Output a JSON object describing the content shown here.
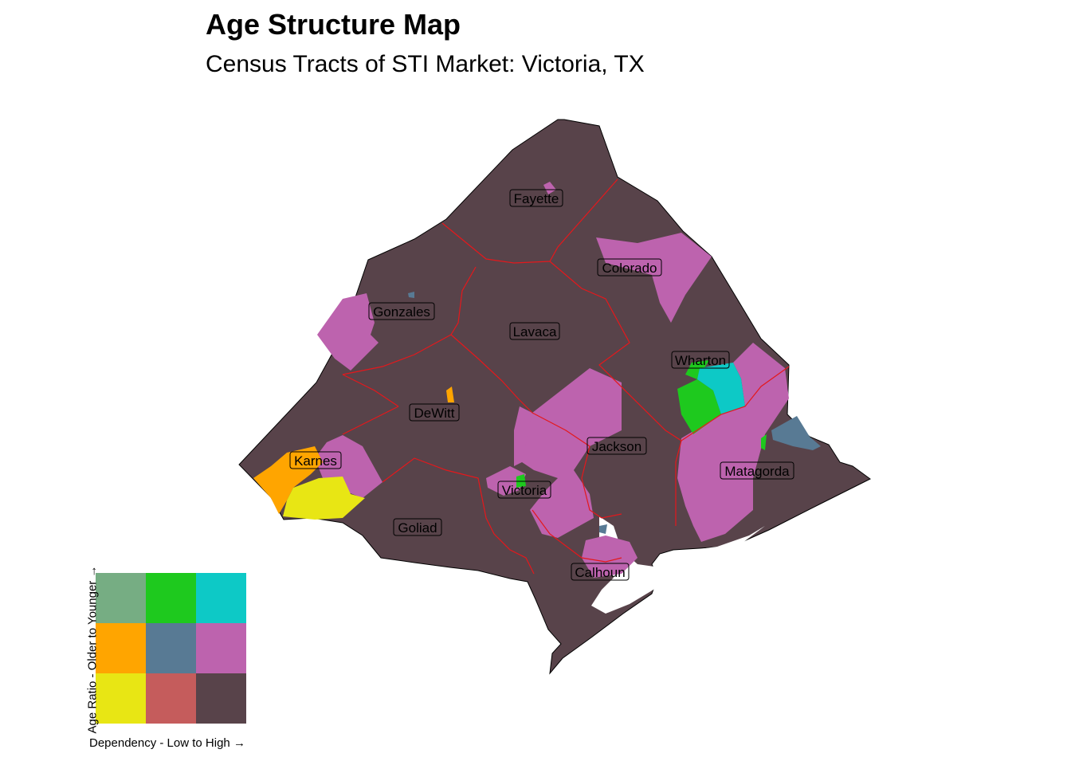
{
  "title": "Age Structure Map",
  "subtitle": "Census Tracts of STI Market: Victoria, TX",
  "map": {
    "counties": [
      {
        "name": "Fayette"
      },
      {
        "name": "Colorado"
      },
      {
        "name": "Gonzales"
      },
      {
        "name": "Lavaca"
      },
      {
        "name": "Wharton"
      },
      {
        "name": "DeWitt"
      },
      {
        "name": "Jackson"
      },
      {
        "name": "Karnes"
      },
      {
        "name": "Matagorda"
      },
      {
        "name": "Victoria"
      },
      {
        "name": "Goliad"
      },
      {
        "name": "Calhoun"
      }
    ],
    "county_border_color": "#e4181c",
    "base_fill": "#58434a"
  },
  "legend": {
    "xlabel": "Dependency - Low to High",
    "ylabel": "Age Ratio - Older to Younger",
    "arrow": "→",
    "grid": [
      [
        "#76ad83",
        "#1ec91e",
        "#0dc9c6"
      ],
      [
        "#ffa500",
        "#587a94",
        "#bd63ae"
      ],
      [
        "#e8e614",
        "#c55c5c",
        "#58434a"
      ]
    ]
  }
}
